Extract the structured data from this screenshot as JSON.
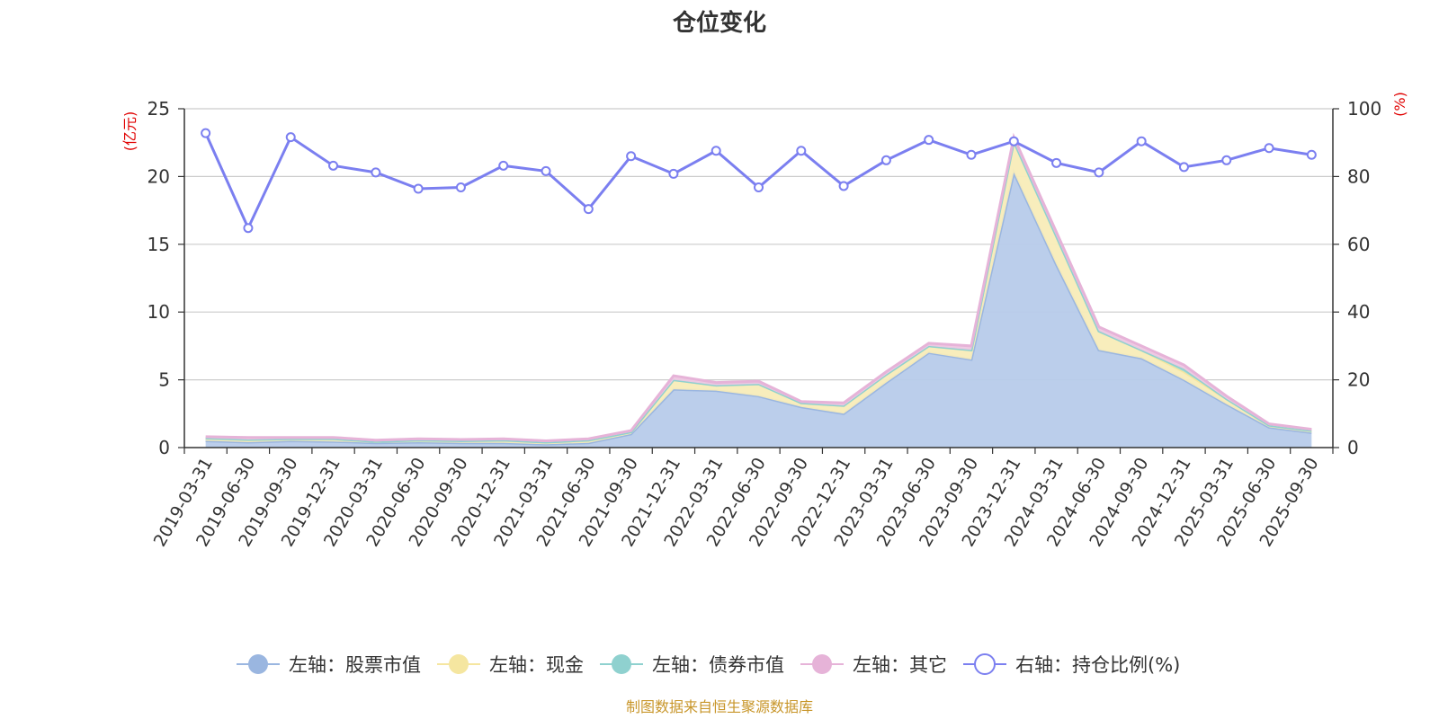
{
  "chart_data": {
    "type": "area",
    "title": "仓位变化",
    "left_unit": "(亿元)",
    "right_unit": "(%)",
    "source": "制图数据来自恒生聚源数据库",
    "ylim_left": [
      0,
      25
    ],
    "yticks_left": [
      "0",
      "5",
      "10",
      "15",
      "20",
      "25"
    ],
    "ylim_right": [
      0,
      100
    ],
    "yticks_right": [
      "0",
      "20",
      "40",
      "60",
      "80",
      "100"
    ],
    "grid": true,
    "legend_position": "bottom",
    "categories": [
      "2019-03-31",
      "2019-06-30",
      "2019-09-30",
      "2019-12-31",
      "2020-03-31",
      "2020-06-30",
      "2020-09-30",
      "2020-12-31",
      "2021-03-31",
      "2021-06-30",
      "2021-09-30",
      "2021-12-31",
      "2022-03-31",
      "2022-06-30",
      "2022-09-30",
      "2022-12-31",
      "2023-03-31",
      "2023-06-30",
      "2023-09-30",
      "2023-12-31",
      "2024-03-31",
      "2024-06-30",
      "2024-09-30",
      "2024-12-31",
      "2025-03-31",
      "2025-06-30",
      "2025-09-30"
    ],
    "series": [
      {
        "name": "左轴：股票市值",
        "axis": "left",
        "stack": true,
        "color": "#9ab6e0",
        "fill": "#b7cbea",
        "values": [
          0.5,
          0.4,
          0.5,
          0.45,
          0.35,
          0.4,
          0.35,
          0.35,
          0.25,
          0.35,
          1.0,
          4.3,
          4.2,
          3.8,
          3.0,
          2.5,
          4.8,
          7.0,
          6.5,
          20.3,
          13.5,
          7.2,
          6.6,
          5.0,
          3.2,
          1.5,
          1.1
        ]
      },
      {
        "name": "左轴：现金",
        "axis": "left",
        "stack": true,
        "color": "#f5e6a0",
        "fill": "#f8ecb8",
        "values": [
          0.2,
          0.2,
          0.15,
          0.2,
          0.1,
          0.15,
          0.15,
          0.2,
          0.15,
          0.2,
          0.15,
          0.7,
          0.4,
          0.9,
          0.3,
          0.6,
          0.6,
          0.5,
          0.7,
          2.3,
          2.1,
          1.4,
          0.6,
          0.6,
          0.4,
          0.15,
          0.15
        ]
      },
      {
        "name": "左轴：债券市值",
        "axis": "left",
        "stack": true,
        "color": "#8fd1cf",
        "fill": "#9fd8d6",
        "values": [
          0,
          0,
          0,
          0,
          0,
          0,
          0,
          0,
          0,
          0,
          0,
          0,
          0,
          0,
          0,
          0,
          0,
          0,
          0,
          0,
          0,
          0,
          0,
          0.2,
          0,
          0,
          0
        ]
      },
      {
        "name": "左轴：其它",
        "axis": "left",
        "stack": true,
        "color": "#e6b3d8",
        "fill": "#efc8e3",
        "values": [
          0.1,
          0.15,
          0.1,
          0.1,
          0.1,
          0.1,
          0.1,
          0.1,
          0.1,
          0.1,
          0.1,
          0.3,
          0.2,
          0.2,
          0.1,
          0.2,
          0.2,
          0.2,
          0.3,
          0.3,
          0.3,
          0.3,
          0.3,
          0.3,
          0.2,
          0.1,
          0.1
        ]
      },
      {
        "name": "右轴：持仓比例(%)",
        "axis": "right",
        "stack": false,
        "color": "#7b7ff0",
        "values": [
          92.8,
          64.8,
          91.6,
          83.2,
          81.2,
          76.4,
          76.8,
          83.2,
          81.6,
          70.4,
          86.0,
          80.8,
          87.6,
          76.8,
          87.6,
          77.2,
          84.8,
          90.8,
          86.4,
          90.4,
          84.0,
          81.2,
          90.4,
          82.8,
          84.8,
          88.4,
          86.4
        ]
      }
    ]
  }
}
